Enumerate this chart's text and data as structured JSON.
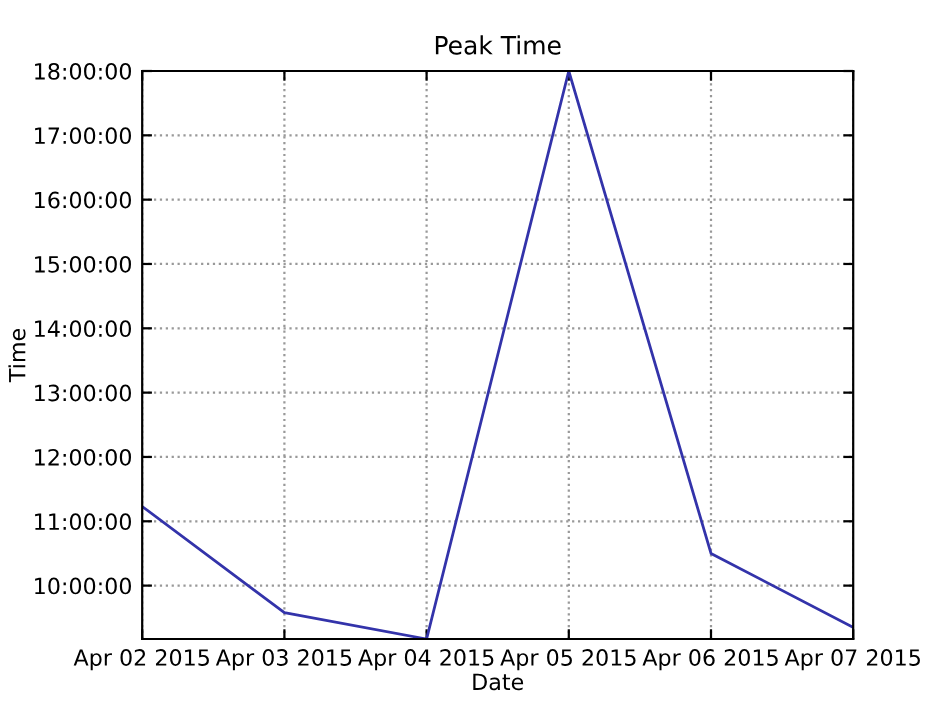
{
  "chart_data": {
    "type": "line",
    "title": "Peak Time",
    "xlabel": "Date",
    "ylabel": "Time",
    "x": [
      "2015-04-02",
      "2015-04-03",
      "2015-04-04",
      "2015-04-05",
      "2015-04-06",
      "2015-04-07"
    ],
    "series": [
      {
        "color": "#3333aa",
        "values": [
          11.23,
          9.58,
          9.17,
          18.0,
          10.5,
          9.35
        ]
      }
    ],
    "xlim": [
      "2015-04-02",
      "2015-04-07"
    ],
    "xticks": [
      {
        "value": "2015-04-02",
        "label": "Apr 02 2015"
      },
      {
        "value": "2015-04-03",
        "label": "Apr 03 2015"
      },
      {
        "value": "2015-04-04",
        "label": "Apr 04 2015"
      },
      {
        "value": "2015-04-05",
        "label": "Apr 05 2015"
      },
      {
        "value": "2015-04-06",
        "label": "Apr 06 2015"
      },
      {
        "value": "2015-04-07",
        "label": "Apr 07 2015"
      }
    ],
    "ylim": [
      9.17,
      18.0
    ],
    "yticks": [
      {
        "value": 10,
        "label": "10:00:00"
      },
      {
        "value": 11,
        "label": "11:00:00"
      },
      {
        "value": 12,
        "label": "12:00:00"
      },
      {
        "value": 13,
        "label": "13:00:00"
      },
      {
        "value": 14,
        "label": "14:00:00"
      },
      {
        "value": 15,
        "label": "15:00:00"
      },
      {
        "value": 16,
        "label": "16:00:00"
      },
      {
        "value": 17,
        "label": "17:00:00"
      },
      {
        "value": 18,
        "label": "18:00:00"
      }
    ],
    "grid": true,
    "line_style": "solid",
    "legend": false
  }
}
